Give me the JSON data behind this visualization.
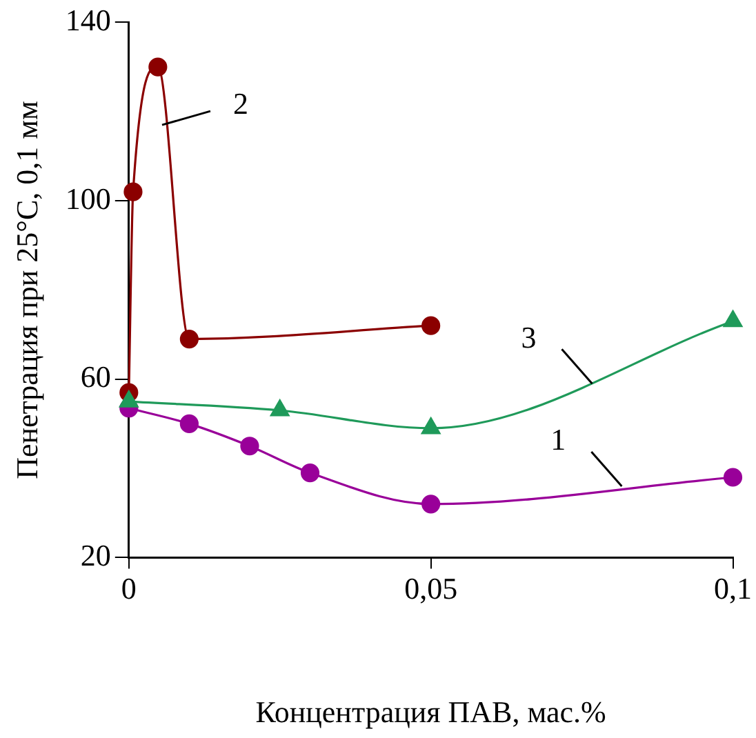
{
  "chart_data": {
    "type": "line",
    "xlabel": "Концентрация ПАВ, мас.%",
    "ylabel": "Пенетрация при 25°С, 0,1 мм",
    "xlim": [
      0,
      0.1
    ],
    "xticks": [
      {
        "value": 0,
        "label": "0"
      },
      {
        "value": 0.05,
        "label": "0,05"
      },
      {
        "value": 0.1,
        "label": "0,1"
      }
    ],
    "ylim": [
      20,
      140
    ],
    "yticks": [
      20,
      60,
      100,
      140
    ],
    "grid": false,
    "legend": false,
    "series": [
      {
        "color": "#990099",
        "marker": "circle",
        "x": [
          0,
          0.01,
          0.02,
          0.03,
          0.05,
          0.1
        ],
        "values": [
          53.5,
          50,
          45,
          39,
          32,
          38
        ]
      },
      {
        "color": "#8b0000",
        "marker": "circle",
        "x": [
          0,
          0.0007,
          0.0048,
          0.01,
          0.05
        ],
        "values": [
          57,
          102,
          130,
          69,
          72
        ]
      },
      {
        "color": "#1f9a5a",
        "marker": "triangle",
        "x": [
          0,
          0.025,
          0.05,
          0.1
        ],
        "values": [
          55,
          53,
          49,
          73
        ]
      }
    ],
    "annotations": [
      {
        "text": "1",
        "x": 0.0816,
        "y": 36
      },
      {
        "text": "2",
        "x": 0.0055,
        "y": 117
      },
      {
        "text": "3",
        "x": 0.0767,
        "y": 59
      }
    ]
  }
}
